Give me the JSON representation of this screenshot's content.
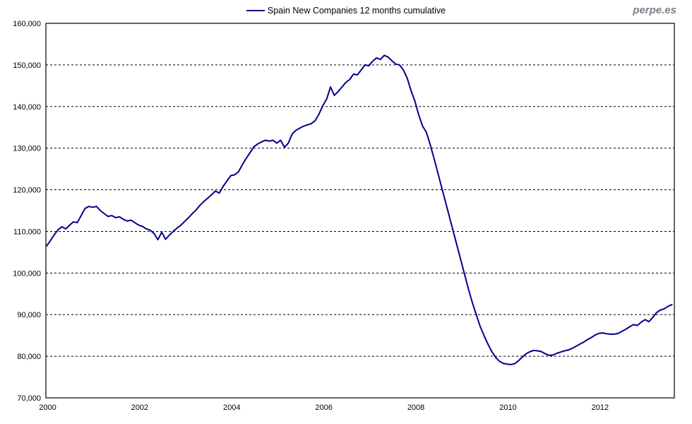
{
  "watermark": {
    "text": "perpe.es"
  },
  "legend": {
    "label": "Spain New Companies 12 months cumulative"
  },
  "colors": {
    "line": "#00008B",
    "grid": "#000000",
    "border": "#000000",
    "text": "#000000",
    "watermark": "#7f7f8c",
    "background": "#ffffff"
  },
  "chart_data": {
    "type": "line",
    "title": "",
    "xlabel": "",
    "ylabel": "",
    "legend_position": "top-center",
    "grid": "horizontal-dashed",
    "ylim": [
      70000,
      160000
    ],
    "y_tick_step": 10000,
    "y_tick_labels": [
      "70,000",
      "80,000",
      "90,000",
      "100,000",
      "110,000",
      "120,000",
      "130,000",
      "140,000",
      "150,000",
      "160,000"
    ],
    "x_ticks": [
      2000,
      2002,
      2004,
      2006,
      2008,
      2010,
      2012
    ],
    "x_start": "2000-01",
    "x_end": "2013-08",
    "x_frequency": "monthly",
    "series": [
      {
        "name": "Spain New Companies 12 months cumulative",
        "color": "#00008B",
        "values": [
          106500,
          107800,
          109200,
          110400,
          111100,
          110600,
          111500,
          112300,
          112100,
          113800,
          115500,
          116000,
          115800,
          116000,
          115000,
          114300,
          113600,
          113800,
          113300,
          113500,
          112900,
          112500,
          112700,
          112100,
          111500,
          111200,
          110600,
          110300,
          109500,
          108000,
          109800,
          108100,
          109100,
          110000,
          110800,
          111500,
          112400,
          113300,
          114300,
          115200,
          116300,
          117200,
          118000,
          118800,
          119700,
          119200,
          120800,
          122100,
          123400,
          123600,
          124300,
          126000,
          127500,
          128900,
          130300,
          131000,
          131500,
          131900,
          131700,
          131900,
          131200,
          131900,
          130200,
          131200,
          133400,
          134300,
          134800,
          135300,
          135600,
          135900,
          136600,
          138200,
          140200,
          141800,
          144700,
          142700,
          143600,
          144700,
          145800,
          146500,
          147800,
          147600,
          148800,
          150000,
          149800,
          150900,
          151700,
          151300,
          152300,
          151900,
          151000,
          150200,
          150000,
          148800,
          146800,
          143800,
          141300,
          138000,
          135300,
          133800,
          130800,
          127500,
          124000,
          120500,
          117000,
          113500,
          110000,
          106500,
          103000,
          99500,
          96000,
          92800,
          90000,
          87200,
          85000,
          83000,
          81200,
          79800,
          78800,
          78300,
          78100,
          78000,
          78200,
          78900,
          79800,
          80600,
          81100,
          81400,
          81300,
          81100,
          80600,
          80200,
          80300,
          80700,
          81000,
          81300,
          81500,
          81900,
          82400,
          82900,
          83400,
          84000,
          84500,
          85100,
          85500,
          85600,
          85400,
          85300,
          85300,
          85500,
          86000,
          86500,
          87100,
          87600,
          87400,
          88200,
          88800,
          88300,
          89300,
          90500,
          91100,
          91400,
          92000,
          92400
        ]
      }
    ]
  }
}
